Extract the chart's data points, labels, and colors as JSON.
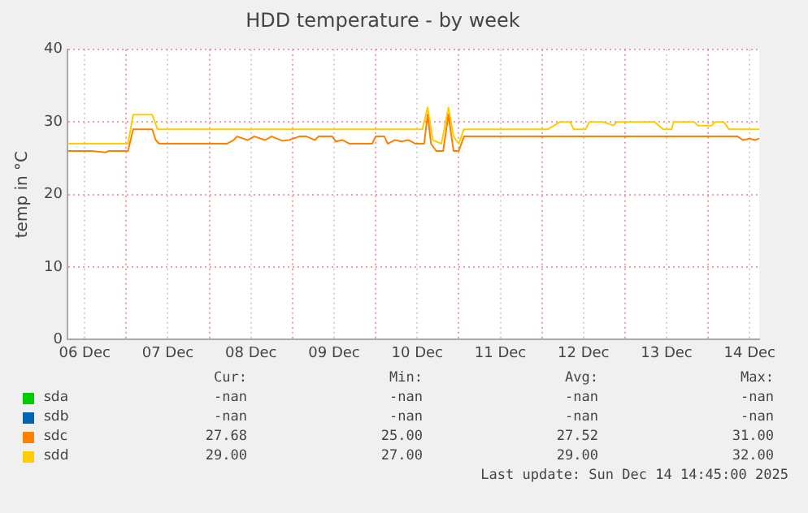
{
  "chart_data": {
    "type": "line",
    "title": "HDD temperature - by week",
    "ylabel": "temp in °C",
    "xlim": [
      "2025-12-06T07:00",
      "2025-12-14T14:45"
    ],
    "xticks": [
      {
        "value": "2025-12-06T12:00",
        "label": "06 Dec"
      },
      {
        "value": "2025-12-07T00:00",
        "label": null
      },
      {
        "value": "2025-12-07T12:00",
        "label": "07 Dec"
      },
      {
        "value": "2025-12-08T00:00",
        "label": null
      },
      {
        "value": "2025-12-08T12:00",
        "label": "08 Dec"
      },
      {
        "value": "2025-12-09T00:00",
        "label": null
      },
      {
        "value": "2025-12-09T12:00",
        "label": "09 Dec"
      },
      {
        "value": "2025-12-10T00:00",
        "label": null
      },
      {
        "value": "2025-12-10T12:00",
        "label": "10 Dec"
      },
      {
        "value": "2025-12-11T00:00",
        "label": null
      },
      {
        "value": "2025-12-11T12:00",
        "label": "11 Dec"
      },
      {
        "value": "2025-12-12T00:00",
        "label": null
      },
      {
        "value": "2025-12-12T12:00",
        "label": "12 Dec"
      },
      {
        "value": "2025-12-13T00:00",
        "label": null
      },
      {
        "value": "2025-12-13T12:00",
        "label": "13 Dec"
      },
      {
        "value": "2025-12-14T00:00",
        "label": null
      },
      {
        "value": "2025-12-14T12:00",
        "label": "14 Dec"
      }
    ],
    "ylim": [
      0,
      40
    ],
    "yticks": [
      0,
      10,
      20,
      30,
      40
    ],
    "grid": true,
    "legend": "bottom",
    "marker": "none",
    "line_style": "solid",
    "series": [
      {
        "name": "sda",
        "color": "#00cc00"
      },
      {
        "name": "sdb",
        "color": "#0066b3"
      },
      {
        "name": "sdc",
        "color": "#ff8000",
        "x": [
          "2025-12-06T07:00",
          "2025-12-06T14:00",
          "2025-12-06T18:00",
          "2025-12-06T19:00",
          "2025-12-07T00:30",
          "2025-12-07T02:00",
          "2025-12-07T07:30",
          "2025-12-07T08:30",
          "2025-12-07T09:30",
          "2025-12-08T05:00",
          "2025-12-08T07:00",
          "2025-12-08T08:00",
          "2025-12-08T11:00",
          "2025-12-08T13:00",
          "2025-12-08T16:00",
          "2025-12-08T18:00",
          "2025-12-08T21:00",
          "2025-12-08T23:00",
          "2025-12-09T02:00",
          "2025-12-09T04:00",
          "2025-12-09T06:30",
          "2025-12-09T07:30",
          "2025-12-09T11:30",
          "2025-12-09T12:30",
          "2025-12-09T14:30",
          "2025-12-09T16:30",
          "2025-12-09T23:00",
          "2025-12-10T00:00",
          "2025-12-10T02:30",
          "2025-12-10T03:30",
          "2025-12-10T05:30",
          "2025-12-10T07:30",
          "2025-12-10T09:30",
          "2025-12-10T11:30",
          "2025-12-10T14:00",
          "2025-12-10T15:00",
          "2025-12-10T16:00",
          "2025-12-10T17:30",
          "2025-12-10T19:30",
          "2025-12-10T21:00",
          "2025-12-10T22:30",
          "2025-12-11T00:00",
          "2025-12-11T01:30",
          "2025-12-11T03:30",
          "2025-12-14T08:30",
          "2025-12-14T10:00",
          "2025-12-14T12:00",
          "2025-12-14T13:30",
          "2025-12-14T14:45"
        ],
        "values": [
          26,
          26,
          25.8,
          26,
          26,
          29,
          29,
          27.5,
          27,
          27,
          27.5,
          28,
          27.5,
          28,
          27.5,
          28,
          27.4,
          27.5,
          28,
          28,
          27.5,
          28,
          28,
          27.3,
          27.5,
          27,
          27,
          28,
          28,
          27,
          27.5,
          27.3,
          27.5,
          27,
          27,
          31,
          27,
          26,
          26,
          31,
          26,
          26,
          28,
          28,
          28,
          27.5,
          27.7,
          27.5,
          27.7
        ]
      },
      {
        "name": "sdd",
        "color": "#ffcc00",
        "x": [
          "2025-12-06T07:00",
          "2025-12-07T00:30",
          "2025-12-07T02:00",
          "2025-12-07T07:30",
          "2025-12-07T09:00",
          "2025-12-10T13:30",
          "2025-12-10T15:00",
          "2025-12-10T16:30",
          "2025-12-10T19:00",
          "2025-12-10T21:00",
          "2025-12-10T22:30",
          "2025-12-11T00:00",
          "2025-12-11T01:30",
          "2025-12-11T18:00",
          "2025-12-12T01:45",
          "2025-12-12T05:15",
          "2025-12-12T08:10",
          "2025-12-12T09:10",
          "2025-12-12T12:40",
          "2025-12-12T13:40",
          "2025-12-12T17:40",
          "2025-12-12T20:40",
          "2025-12-12T21:40",
          "2025-12-13T08:30",
          "2025-12-13T11:00",
          "2025-12-13T13:30",
          "2025-12-13T14:00",
          "2025-12-13T20:00",
          "2025-12-13T21:00",
          "2025-12-14T01:00",
          "2025-12-14T02:00",
          "2025-12-14T04:30",
          "2025-12-14T06:00",
          "2025-12-14T14:45"
        ],
        "values": [
          27,
          27,
          31,
          31,
          29,
          29,
          32,
          27.5,
          27,
          32,
          28,
          27,
          29,
          29,
          29,
          30,
          30,
          29,
          29,
          30,
          30,
          29.5,
          30,
          30,
          29,
          29,
          30,
          30,
          29.5,
          29.5,
          30,
          30,
          29,
          29
        ]
      }
    ],
    "annotations": [
      "Cur:",
      "Min:",
      "Avg:",
      "Max:",
      "-nan",
      "-nan",
      "-nan",
      "-nan",
      "-nan",
      "-nan",
      "-nan",
      "-nan",
      "27.68",
      "25.00",
      "27.52",
      "31.00",
      "29.00",
      "27.00",
      "29.00",
      "32.00",
      "Last update: Sun Dec 14 14:45:00 2025"
    ]
  }
}
